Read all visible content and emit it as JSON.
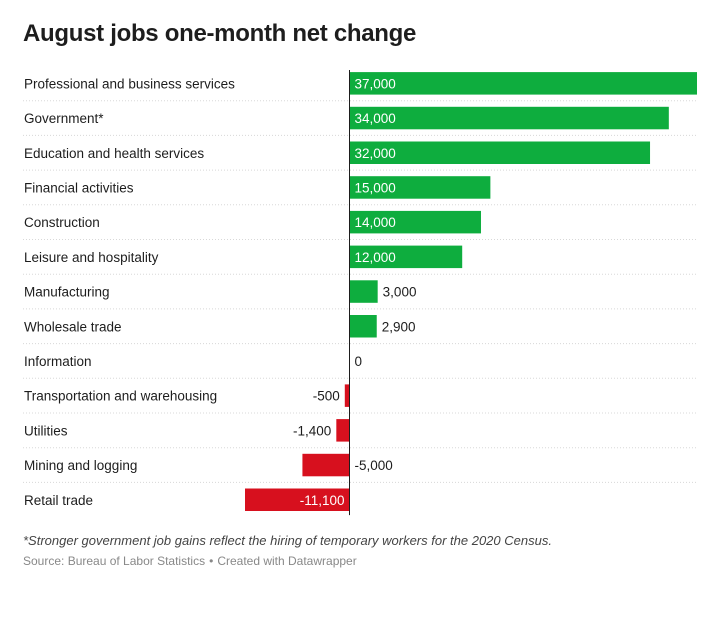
{
  "chart_data": {
    "type": "bar",
    "orientation": "horizontal",
    "title": "August jobs one-month net change",
    "categories": [
      "Professional and business services",
      "Government*",
      "Education and health services",
      "Financial activities",
      "Construction",
      "Leisure and hospitality",
      "Manufacturing",
      "Wholesale trade",
      "Information",
      "Transportation and warehousing",
      "Utilities",
      "Mining and logging",
      "Retail trade"
    ],
    "values": [
      37000,
      34000,
      32000,
      15000,
      14000,
      12000,
      3000,
      2900,
      0,
      -500,
      -1400,
      -5000,
      -11100
    ],
    "value_labels": [
      "37,000",
      "34,000",
      "32,000",
      "15,000",
      "14,000",
      "12,000",
      "3,000",
      "2,900",
      "0",
      "-500",
      "-1,400",
      "-5,000",
      "-11,100"
    ],
    "xlim": [
      -11100,
      37000
    ],
    "colors": {
      "positive": "#0ead3e",
      "negative": "#d7101e",
      "grid": "#d8d8d8",
      "zero_line": "#1d1d1d"
    },
    "note": "*Stronger government job gains reflect the hiring of temporary workers for the 2020 Census.",
    "source": "Source: Bureau of Labor Statistics",
    "credit": "Created with Datawrapper"
  }
}
